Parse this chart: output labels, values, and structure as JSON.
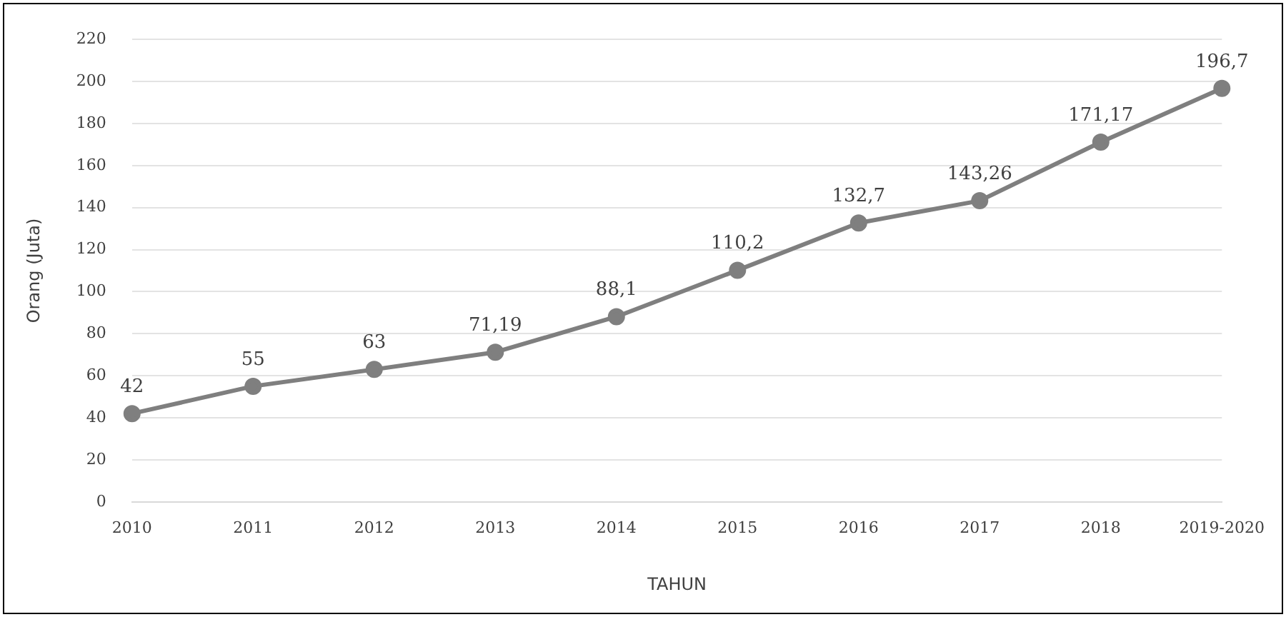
{
  "chart_data": {
    "type": "line",
    "xlabel": "TAHUN",
    "ylabel": "Orang (Juta)",
    "categories": [
      "2010",
      "2011",
      "2012",
      "2013",
      "2014",
      "2015",
      "2016",
      "2017",
      "2018",
      "2019-2020"
    ],
    "series": [
      {
        "color": "#7f7f7f",
        "values": [
          42,
          55,
          63,
          71.19,
          88.1,
          110.2,
          132.7,
          143.26,
          171.17,
          196.7
        ],
        "value_labels": [
          "42",
          "55",
          "63",
          "71,19",
          "88,1",
          "110,2",
          "132,7",
          "143,26",
          "171,17",
          "196,7"
        ]
      }
    ],
    "ylim": [
      0,
      220
    ],
    "yticks": [
      0,
      20,
      40,
      60,
      80,
      100,
      120,
      140,
      160,
      180,
      200,
      220
    ],
    "grid": "y",
    "legend": false,
    "marker": "circle",
    "line_style": "solid"
  }
}
